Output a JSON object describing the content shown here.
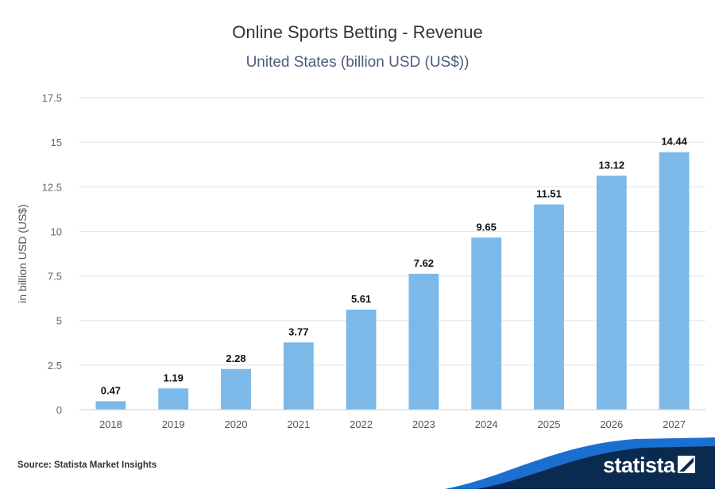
{
  "header": {
    "title": "Online Sports Betting - Revenue",
    "subtitle": "United States (billion USD (US$))"
  },
  "footer": {
    "source": "Source: Statista Market Insights",
    "brand": "statista",
    "brand_color": "#0b2a4f",
    "accent_color": "#1a6fd1"
  },
  "chart_data": {
    "type": "bar",
    "categories": [
      "2018",
      "2019",
      "2020",
      "2021",
      "2022",
      "2023",
      "2024",
      "2025",
      "2026",
      "2027"
    ],
    "values": [
      0.47,
      1.19,
      2.28,
      3.77,
      5.61,
      7.62,
      9.65,
      11.51,
      13.12,
      14.44
    ],
    "value_labels": [
      "0.47",
      "1.19",
      "2.28",
      "3.77",
      "5.61",
      "7.62",
      "9.65",
      "11.51",
      "13.12",
      "14.44"
    ],
    "ylabel": "in billion USD (US$)",
    "ylim": [
      0,
      17.5
    ],
    "yticks": [
      0,
      2.5,
      5,
      7.5,
      10,
      12.5,
      15,
      17.5
    ],
    "ytick_labels": [
      "0",
      "2.5",
      "5",
      "7.5",
      "10",
      "12.5",
      "15",
      "17.5"
    ],
    "bar_color": "#7cb9e8",
    "grid": true
  }
}
